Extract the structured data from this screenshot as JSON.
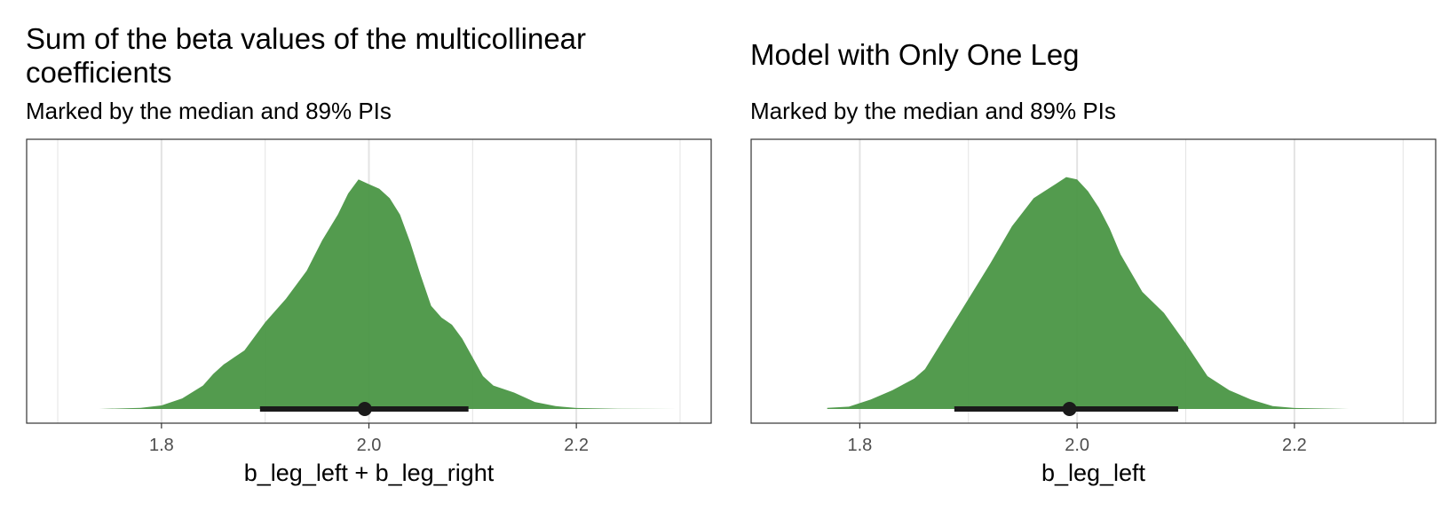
{
  "colors": {
    "fill": "#4a9645",
    "interval": "#1a1a1a",
    "grid": "#e3e3e3",
    "border": "#333333"
  },
  "chart_data": [
    {
      "type": "area",
      "title": "Sum of the beta values of the multicollinear coefficients",
      "subtitle": "Marked by the median and 89% PIs",
      "xlabel": "b_leg_left + b_leg_right",
      "ylabel": "",
      "xlim": [
        1.67,
        2.33
      ],
      "xticks": [
        1.8,
        2.0,
        2.2
      ],
      "xtick_labels": [
        "1.8",
        "2.0",
        "2.2"
      ],
      "grid": true,
      "density": {
        "x": [
          1.74,
          1.78,
          1.8,
          1.82,
          1.84,
          1.85,
          1.86,
          1.87,
          1.88,
          1.9,
          1.92,
          1.94,
          1.955,
          1.97,
          1.98,
          1.99,
          2.0,
          2.01,
          2.02,
          2.03,
          2.04,
          2.05,
          2.06,
          2.07,
          2.08,
          2.09,
          2.1,
          2.11,
          2.12,
          2.14,
          2.16,
          2.18,
          2.2,
          2.24,
          2.3
        ],
        "y": [
          0.0,
          0.005,
          0.015,
          0.045,
          0.1,
          0.15,
          0.19,
          0.22,
          0.25,
          0.37,
          0.47,
          0.59,
          0.72,
          0.83,
          0.92,
          0.98,
          0.96,
          0.94,
          0.9,
          0.83,
          0.71,
          0.57,
          0.44,
          0.39,
          0.36,
          0.3,
          0.22,
          0.14,
          0.1,
          0.07,
          0.03,
          0.012,
          0.004,
          0.001,
          0.0
        ]
      },
      "median": 1.996,
      "interval": [
        1.895,
        2.096
      ],
      "interval_label": "89% PI"
    },
    {
      "type": "area",
      "title": "Model with Only One Leg",
      "subtitle": "Marked by the median and 89% PIs",
      "xlabel": "b_leg_left",
      "ylabel": "",
      "xlim": [
        1.7,
        2.33
      ],
      "xticks": [
        1.8,
        2.0,
        2.2
      ],
      "xtick_labels": [
        "1.8",
        "2.0",
        "2.2"
      ],
      "grid": true,
      "density": {
        "x": [
          1.77,
          1.79,
          1.81,
          1.83,
          1.85,
          1.86,
          1.88,
          1.9,
          1.92,
          1.94,
          1.96,
          1.97,
          1.98,
          1.99,
          2.0,
          2.01,
          2.02,
          2.03,
          2.04,
          2.06,
          2.08,
          2.1,
          2.12,
          2.14,
          2.16,
          2.18,
          2.2,
          2.25
        ],
        "y": [
          0.005,
          0.01,
          0.04,
          0.08,
          0.13,
          0.17,
          0.32,
          0.47,
          0.62,
          0.78,
          0.9,
          0.93,
          0.96,
          0.99,
          0.98,
          0.93,
          0.86,
          0.77,
          0.66,
          0.5,
          0.41,
          0.28,
          0.14,
          0.08,
          0.04,
          0.012,
          0.004,
          0.0
        ]
      },
      "median": 1.993,
      "interval": [
        1.887,
        2.093
      ],
      "interval_label": "89% PI"
    }
  ]
}
